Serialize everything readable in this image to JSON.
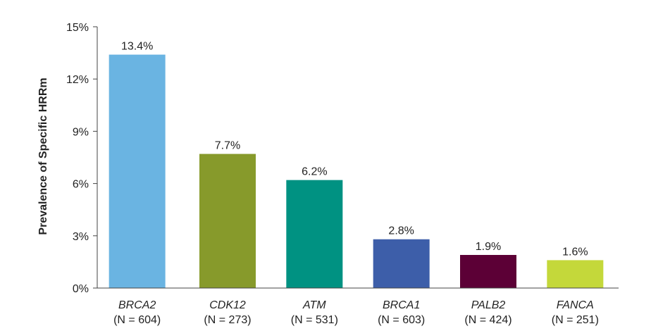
{
  "chart_data": {
    "type": "bar",
    "title": "",
    "xlabel": "",
    "ylabel": "Prevalence of Specific HRRm",
    "ylim": [
      0,
      15
    ],
    "yticks": [
      {
        "value": 0,
        "label": "0%"
      },
      {
        "value": 3,
        "label": "3%"
      },
      {
        "value": 6,
        "label": "6%"
      },
      {
        "value": 9,
        "label": "9%"
      },
      {
        "value": 12,
        "label": "12%"
      },
      {
        "value": 15,
        "label": "15%"
      }
    ],
    "grid": false,
    "categories": [
      "BRCA2",
      "CDK12",
      "ATM",
      "BRCA1",
      "PALB2",
      "FANCA"
    ],
    "sample_sizes": [
      "(N = 604)",
      "(N = 273)",
      "(N = 531)",
      "(N = 603)",
      "(N = 424)",
      "(N = 251)"
    ],
    "values": [
      13.4,
      7.7,
      6.2,
      2.8,
      1.9,
      1.6
    ],
    "data_labels": [
      "13.4%",
      "7.7%",
      "6.2%",
      "2.8%",
      "1.9%",
      "1.6%"
    ],
    "colors": [
      "#6ab4e2",
      "#879a2b",
      "#009282",
      "#3d5ea9",
      "#5c0036",
      "#c4d83a"
    ]
  }
}
